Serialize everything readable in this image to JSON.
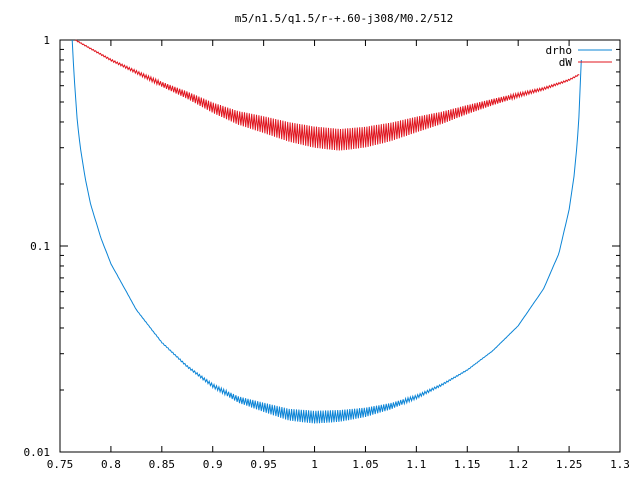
{
  "chart_data": {
    "type": "line",
    "title": "m5/n1.5/q1.5/r-+.60-j308/M0.2/512",
    "xlabel": "",
    "ylabel": "",
    "xlim": [
      0.75,
      1.3
    ],
    "ylim": [
      0.01,
      1
    ],
    "yscale": "log",
    "grid": false,
    "legend_position": "top-right",
    "x_ticks": [
      0.75,
      0.8,
      0.85,
      0.9,
      0.95,
      1.0,
      1.05,
      1.1,
      1.15,
      1.2,
      1.25,
      1.3
    ],
    "x_tick_labels": [
      "0.75",
      "0.8",
      "0.85",
      "0.9",
      "0.95",
      "1",
      "1.05",
      "1.1",
      "1.15",
      "1.2",
      "1.25",
      "1.3"
    ],
    "y_ticks": [
      0.01,
      0.1,
      1
    ],
    "y_tick_labels": [
      "0.01",
      "0.1",
      "1"
    ],
    "series": [
      {
        "name": "drho",
        "color": "#0b84d6",
        "x": [
          0.762,
          0.763,
          0.765,
          0.767,
          0.77,
          0.775,
          0.78,
          0.79,
          0.8,
          0.825,
          0.85,
          0.875,
          0.9,
          0.925,
          0.95,
          0.975,
          1.0,
          1.025,
          1.05,
          1.075,
          1.1,
          1.125,
          1.15,
          1.175,
          1.2,
          1.225,
          1.24,
          1.25,
          1.255,
          1.258,
          1.26,
          1.261,
          1.262
        ],
        "y": [
          1.0,
          0.8,
          0.55,
          0.4,
          0.3,
          0.21,
          0.16,
          0.11,
          0.082,
          0.049,
          0.034,
          0.026,
          0.021,
          0.018,
          0.0165,
          0.0152,
          0.0148,
          0.015,
          0.0156,
          0.0167,
          0.0185,
          0.0212,
          0.025,
          0.031,
          0.041,
          0.062,
          0.092,
          0.15,
          0.22,
          0.32,
          0.45,
          0.62,
          0.8
        ]
      },
      {
        "name": "dW",
        "color": "#e0141e",
        "x": [
          0.765,
          0.8,
          0.85,
          0.875,
          0.9,
          0.925,
          0.95,
          0.975,
          1.0,
          1.025,
          1.05,
          1.075,
          1.1,
          1.125,
          1.15,
          1.175,
          1.2,
          1.225,
          1.25,
          1.26
        ],
        "y": [
          1.0,
          0.8,
          0.61,
          0.54,
          0.47,
          0.42,
          0.39,
          0.36,
          0.34,
          0.33,
          0.34,
          0.36,
          0.39,
          0.42,
          0.46,
          0.5,
          0.54,
          0.58,
          0.64,
          0.68
        ]
      }
    ]
  }
}
